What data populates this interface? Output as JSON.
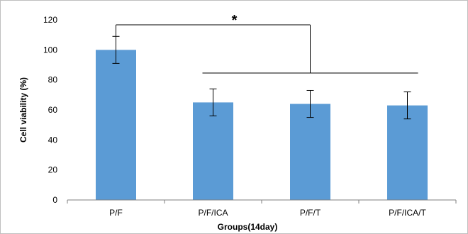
{
  "chart_data": {
    "type": "bar",
    "categories": [
      "P/F",
      "P/F/ICA",
      "P/F/T",
      "P/F/ICA/T"
    ],
    "values": [
      100,
      65,
      64,
      63
    ],
    "error": [
      9,
      9,
      9,
      9
    ],
    "xlabel": "Groups(14day)",
    "ylabel": "Cell viability (%)",
    "ylim": [
      0,
      120
    ],
    "yticks": [
      0,
      20,
      40,
      60,
      80,
      100,
      120
    ],
    "grid": false,
    "bar_color": "#5b9bd5",
    "annotation": {
      "text": "*",
      "compare_from": "P/F",
      "compare_to": [
        "P/F/ICA",
        "P/F/T",
        "P/F/ICA/T"
      ]
    }
  }
}
